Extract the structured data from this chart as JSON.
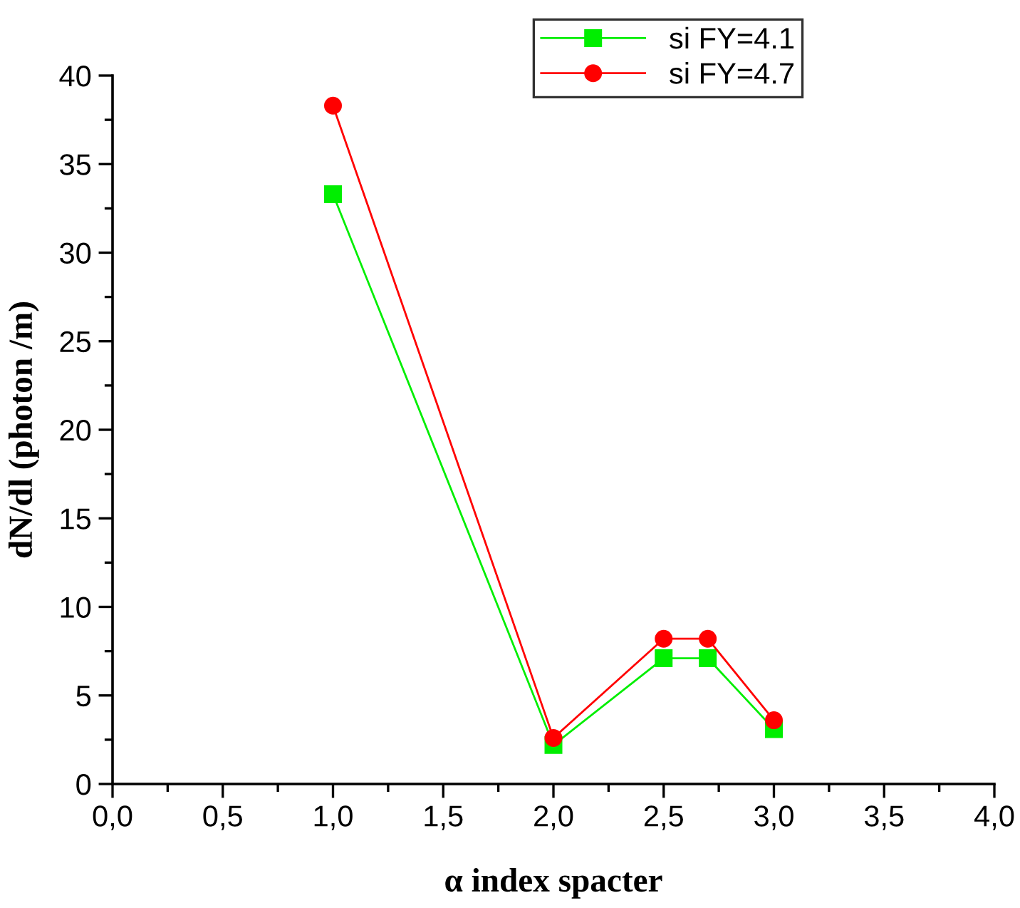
{
  "chart_data": {
    "type": "line",
    "xlabel": "α index spacter",
    "ylabel": "dN/dl (photon /m)",
    "x": [
      1.0,
      2.0,
      2.5,
      2.7,
      3.0
    ],
    "series": [
      {
        "name": "si FY=4.1",
        "color": "#00ee00",
        "marker": "square",
        "values": [
          33.3,
          2.2,
          7.1,
          7.1,
          3.1
        ]
      },
      {
        "name": "si FY=4.7",
        "color": "#ff0000",
        "marker": "circle",
        "values": [
          38.3,
          2.6,
          8.2,
          8.2,
          3.6
        ]
      }
    ],
    "xlim": [
      0,
      4
    ],
    "xticks": [
      {
        "value": 0,
        "label": "0,0"
      },
      {
        "value": 0.25,
        "label": null
      },
      {
        "value": 0.5,
        "label": "0,5"
      },
      {
        "value": 0.75,
        "label": null
      },
      {
        "value": 1,
        "label": "1,0"
      },
      {
        "value": 1.25,
        "label": null
      },
      {
        "value": 1.5,
        "label": "1,5"
      },
      {
        "value": 1.75,
        "label": null
      },
      {
        "value": 2,
        "label": "2,0"
      },
      {
        "value": 2.25,
        "label": null
      },
      {
        "value": 2.5,
        "label": "2,5"
      },
      {
        "value": 2.75,
        "label": null
      },
      {
        "value": 3,
        "label": "3,0"
      },
      {
        "value": 3.25,
        "label": null
      },
      {
        "value": 3.5,
        "label": "3,5"
      },
      {
        "value": 3.75,
        "label": null
      },
      {
        "value": 4,
        "label": "4,0"
      }
    ],
    "ylim": [
      0,
      40
    ],
    "yticks": [
      0,
      {
        "value": 2.5,
        "label": null
      },
      5,
      {
        "value": 7.5,
        "label": null
      },
      10,
      {
        "value": 12.5,
        "label": null
      },
      15,
      {
        "value": 17.5,
        "label": null
      },
      20,
      {
        "value": 22.5,
        "label": null
      },
      25,
      {
        "value": 27.5,
        "label": null
      },
      30,
      {
        "value": 32.5,
        "label": null
      },
      35,
      {
        "value": 37.5,
        "label": null
      },
      40
    ],
    "grid": false,
    "legend": "top",
    "line_style": "solid"
  }
}
